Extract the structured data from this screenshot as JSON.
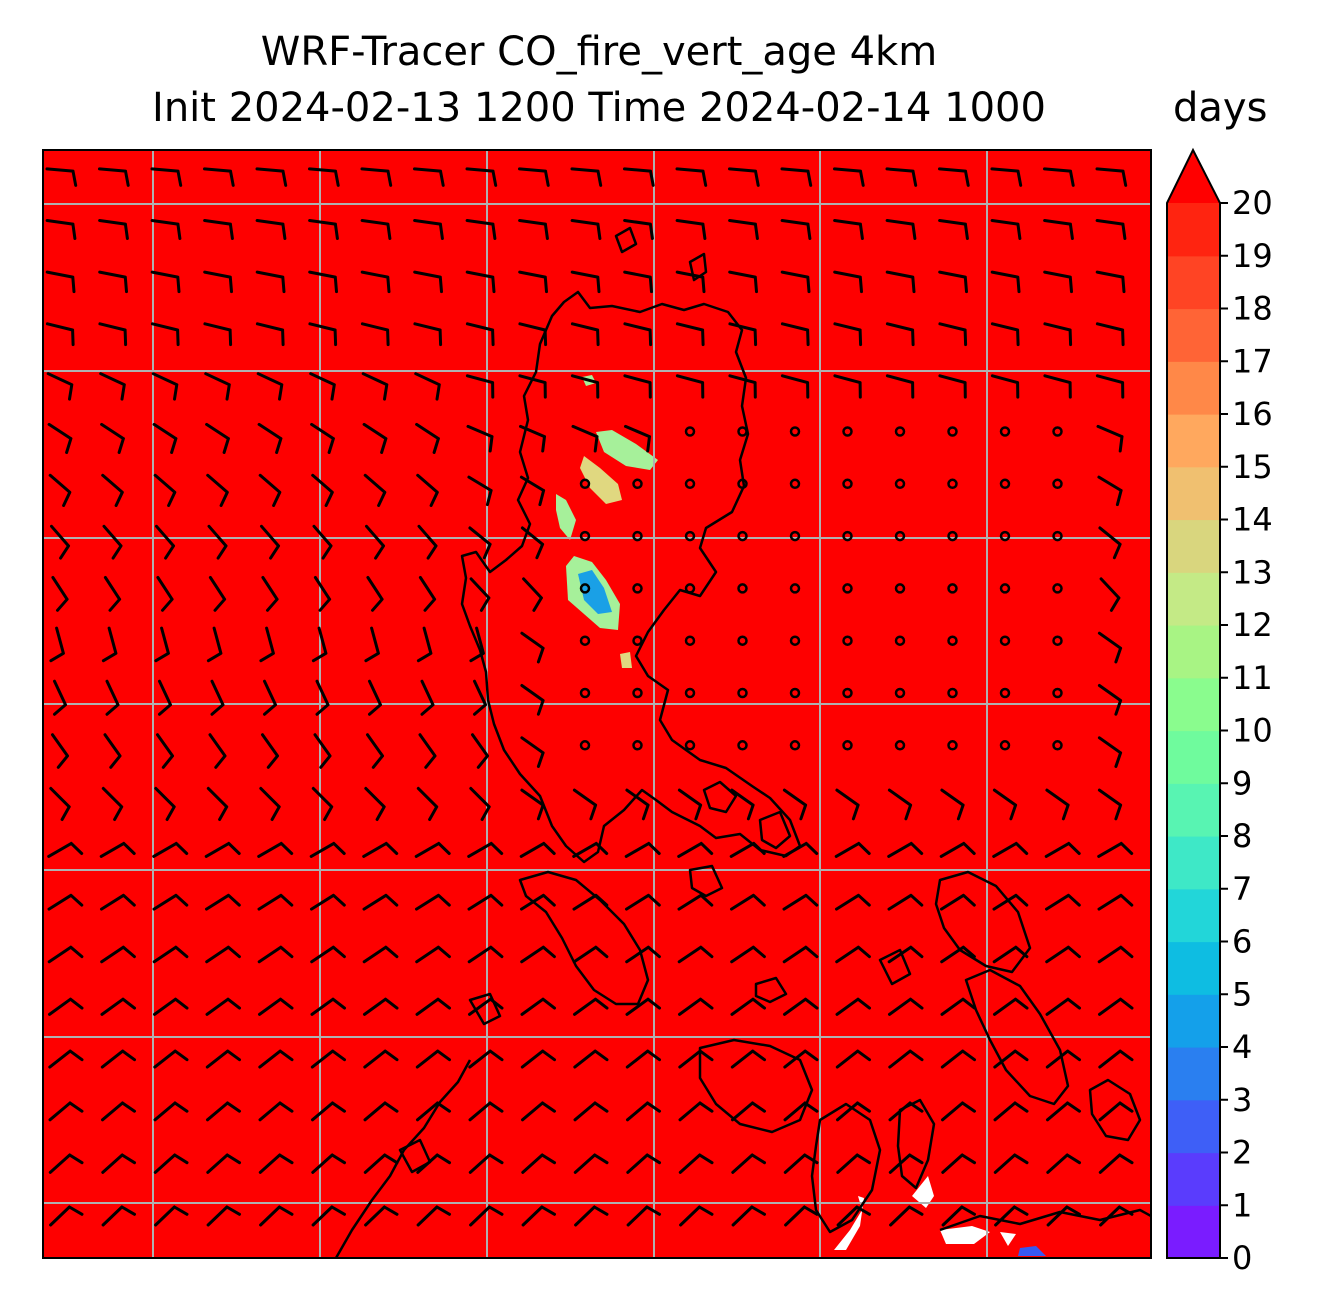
{
  "chart_data": {
    "type": "heatmap",
    "title": "WRF-Tracer CO_fire_vert_age 4km",
    "subtitle": "Init 2024-02-13 1200 Time 2024-02-14 1000",
    "colorbar": {
      "units": "days",
      "min": 0,
      "max": 20,
      "extend": "max",
      "ticks": [
        "0",
        "1",
        "2",
        "3",
        "4",
        "5",
        "6",
        "7",
        "8",
        "9",
        "10",
        "11",
        "12",
        "13",
        "14",
        "15",
        "16",
        "17",
        "18",
        "19",
        "20"
      ],
      "colors": [
        "#7a1cff",
        "#5a3cfd",
        "#3e5ff7",
        "#2a7ff0",
        "#14a0ea",
        "#0ebde2",
        "#22d6d9",
        "#3ee8c7",
        "#58f4b2",
        "#6ffb9d",
        "#8afc8e",
        "#a8f484",
        "#c4ea86",
        "#d9d67e",
        "#f0c070",
        "#ffa85e",
        "#ff8848",
        "#ff6436",
        "#ff4424",
        "#ff2410",
        "#ff0000"
      ]
    },
    "field": {
      "background_value": 20,
      "color": "#fe0000",
      "patches": [
        {
          "approx_value": 13,
          "color": "#e0d880"
        },
        {
          "approx_value": 11,
          "color": "#a6f09a"
        },
        {
          "approx_value": 5,
          "color": "#1aa0e6"
        },
        {
          "approx_value": 3,
          "color": "#3858f0"
        }
      ]
    },
    "grid": true,
    "overlays": [
      "coastlines",
      "wind barbs"
    ]
  }
}
